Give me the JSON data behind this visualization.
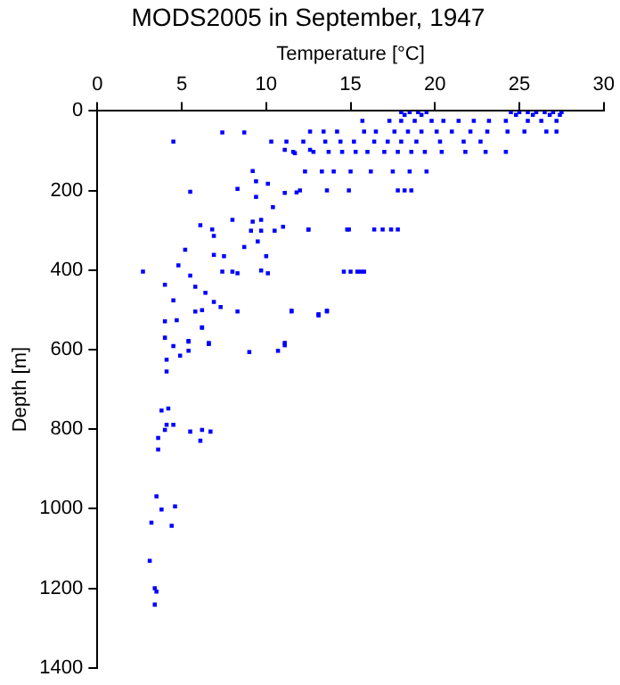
{
  "chart_data": {
    "type": "scatter",
    "title": "MODS2005 in September, 1947",
    "xlabel": "Temperature [°C]",
    "ylabel": "Depth [m]",
    "xlim": [
      0,
      30
    ],
    "xticks": [
      0,
      5,
      10,
      15,
      20,
      25,
      30
    ],
    "ylim": [
      1400,
      0
    ],
    "yticks": [
      0,
      200,
      400,
      600,
      800,
      1000,
      1200,
      1400
    ],
    "grid": false,
    "legend": false,
    "marker": "square",
    "series": [
      {
        "color": "#0000ff",
        "x": [
          18.0,
          18.5,
          19.0,
          19.5,
          24.5,
          25.0,
          25.5,
          26.0,
          26.5,
          27.0,
          27.5,
          18.2,
          19.2,
          24.8,
          25.8,
          26.8,
          27.4,
          15.7,
          17.3,
          18.0,
          18.8,
          19.8,
          20.5,
          21.4,
          22.3,
          23.2,
          24.2,
          25.5,
          26.3,
          27.2,
          12.6,
          13.4,
          14.2,
          15.8,
          16.5,
          17.6,
          18.4,
          19.2,
          20.1,
          21.0,
          22.1,
          23.1,
          24.3,
          25.3,
          26.6,
          27.2,
          10.3,
          11.2,
          12.2,
          13.5,
          14.4,
          15.2,
          16.4,
          17.2,
          18.0,
          18.9,
          20.3,
          21.7,
          22.7,
          11.6,
          12.8,
          13.7,
          14.5,
          15.3,
          16.0,
          17.0,
          17.8,
          18.6,
          19.4,
          20.4,
          21.8,
          23.0,
          24.2,
          12.3,
          13.3,
          14.0,
          15.0,
          16.2,
          17.5,
          18.5,
          19.5,
          13.6,
          14.9,
          17.8,
          18.2,
          18.6,
          11.8,
          12.5,
          14.9,
          16.4,
          16.9,
          17.4,
          17.8,
          14.6,
          15.0,
          15.4,
          15.8,
          11.5,
          13.6,
          13.1,
          4.5,
          7.4,
          8.7,
          11.1,
          11.7,
          12.6,
          9.2,
          9.4,
          10.1,
          5.5,
          8.3,
          9.4,
          10.4,
          11.1,
          12.0,
          8.0,
          9.2,
          9.7,
          9.1,
          9.7,
          10.5,
          11.0,
          12.5,
          14.8,
          6.1,
          6.8,
          6.9,
          5.2,
          8.7,
          9.5,
          10.0,
          4.8,
          2.7,
          5.5,
          6.9,
          7.5,
          7.4,
          8.0,
          8.3,
          9.7,
          10.1,
          15.6,
          4.0,
          5.8,
          6.4,
          4.5,
          6.9,
          5.8,
          6.2,
          7.3,
          8.3,
          4.0,
          4.7,
          6.2,
          4.0,
          5.4,
          6.6,
          11.1,
          11.5,
          13.1,
          13.6,
          4.5,
          5.4,
          6.6,
          6.2,
          4.1,
          4.9,
          5.4,
          4.1,
          9.0,
          10.7,
          11.1,
          3.8,
          4.2,
          4.1,
          4.0,
          4.5,
          3.6,
          3.6,
          5.5,
          6.2,
          6.7,
          6.1,
          3.5,
          3.8,
          4.6,
          3.2,
          4.4,
          3.1,
          3.4,
          3.5,
          3.4
        ],
        "values": [
          3,
          3,
          3,
          3,
          3,
          3,
          3,
          3,
          3,
          3,
          3,
          10,
          10,
          10,
          10,
          10,
          10,
          25,
          25,
          25,
          25,
          25,
          25,
          25,
          25,
          25,
          25,
          25,
          25,
          25,
          52,
          52,
          52,
          52,
          52,
          52,
          52,
          52,
          52,
          52,
          52,
          52,
          52,
          52,
          52,
          52,
          77,
          77,
          77,
          77,
          77,
          77,
          77,
          77,
          77,
          77,
          77,
          77,
          77,
          103,
          103,
          103,
          103,
          103,
          103,
          103,
          103,
          103,
          103,
          103,
          103,
          103,
          103,
          152,
          152,
          152,
          152,
          152,
          152,
          152,
          152,
          200,
          200,
          200,
          200,
          200,
          205,
          298,
          298,
          298,
          298,
          298,
          298,
          404,
          404,
          404,
          404,
          504,
          504,
          514,
          77,
          54,
          54,
          98,
          106,
          98,
          151,
          177,
          183,
          203,
          196,
          216,
          242,
          206,
          200,
          274,
          278,
          274,
          301,
          301,
          301,
          291,
          298,
          298,
          287,
          298,
          314,
          349,
          342,
          328,
          365,
          388,
          404,
          414,
          362,
          365,
          404,
          404,
          408,
          401,
          408,
          404,
          437,
          442,
          457,
          476,
          480,
          504,
          501,
          493,
          504,
          529,
          526,
          544,
          570,
          578,
          583,
          583,
          502,
          511,
          502,
          591,
          580,
          586,
          545,
          625,
          615,
          603,
          655,
          606,
          603,
          589,
          753,
          748,
          789,
          802,
          789,
          822,
          851,
          806,
          802,
          806,
          829,
          969,
          1002,
          994,
          1035,
          1043,
          1131,
          1200,
          1208,
          1241
        ]
      }
    ]
  }
}
